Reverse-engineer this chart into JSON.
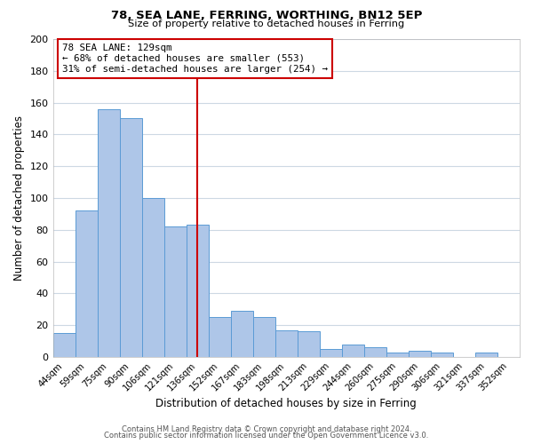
{
  "title1": "78, SEA LANE, FERRING, WORTHING, BN12 5EP",
  "title2": "Size of property relative to detached houses in Ferring",
  "xlabel": "Distribution of detached houses by size in Ferring",
  "ylabel": "Number of detached properties",
  "categories": [
    "44sqm",
    "59sqm",
    "75sqm",
    "90sqm",
    "106sqm",
    "121sqm",
    "136sqm",
    "152sqm",
    "167sqm",
    "183sqm",
    "198sqm",
    "213sqm",
    "229sqm",
    "244sqm",
    "260sqm",
    "275sqm",
    "290sqm",
    "306sqm",
    "321sqm",
    "337sqm",
    "352sqm"
  ],
  "values": [
    15,
    92,
    156,
    150,
    100,
    82,
    83,
    25,
    29,
    25,
    17,
    16,
    5,
    8,
    6,
    3,
    4,
    3,
    0,
    3,
    0
  ],
  "bar_color": "#aec6e8",
  "bar_edge_color": "#5b9bd5",
  "vline_x": 6.0,
  "vline_color": "#cc0000",
  "annotation_title": "78 SEA LANE: 129sqm",
  "annotation_line1": "← 68% of detached houses are smaller (553)",
  "annotation_line2": "31% of semi-detached houses are larger (254) →",
  "annotation_box_color": "#ffffff",
  "annotation_box_edge_color": "#cc0000",
  "ylim": [
    0,
    200
  ],
  "yticks": [
    0,
    20,
    40,
    60,
    80,
    100,
    120,
    140,
    160,
    180,
    200
  ],
  "footer1": "Contains HM Land Registry data © Crown copyright and database right 2024.",
  "footer2": "Contains public sector information licensed under the Open Government Licence v3.0.",
  "background_color": "#ffffff",
  "grid_color": "#cdd8e3"
}
